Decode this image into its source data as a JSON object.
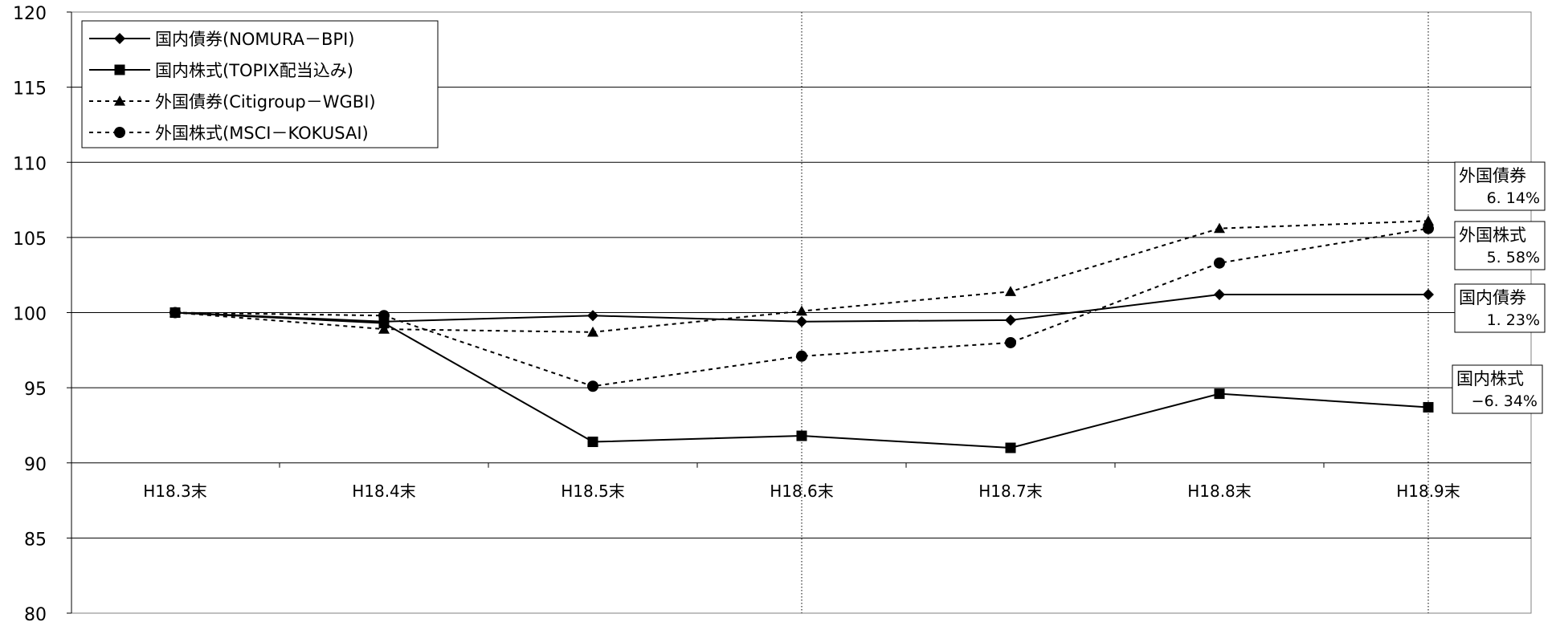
{
  "chart_data": {
    "type": "line",
    "categories": [
      "H18.3末",
      "H18.4末",
      "H18.5末",
      "H18.6末",
      "H18.7末",
      "H18.8末",
      "H18.9末"
    ],
    "ylim": [
      80,
      120
    ],
    "yticks": [
      "120",
      "115",
      "110",
      "105",
      "100",
      "95",
      "90",
      "85",
      "80"
    ],
    "grid": true,
    "legend_position": "top-left",
    "series": [
      {
        "name": "国内債券(NOMURA－BPI)",
        "marker": "diamond",
        "line_style": "solid",
        "values": [
          100,
          99.4,
          99.8,
          99.4,
          99.5,
          101.2,
          101.2
        ],
        "end_label": {
          "title": "国内債券",
          "value": "1. 23%"
        }
      },
      {
        "name": "国内株式(TOPIX配当込み)",
        "marker": "square",
        "line_style": "solid",
        "values": [
          100,
          99.3,
          91.4,
          91.8,
          91.0,
          94.6,
          93.7
        ],
        "end_label": {
          "title": "国内株式",
          "value": "−6. 34%"
        }
      },
      {
        "name": "外国債券(Citigroup－WGBI)",
        "marker": "triangle",
        "line_style": "dashed",
        "values": [
          100,
          98.9,
          98.7,
          100.1,
          101.4,
          105.6,
          106.1
        ],
        "end_label": {
          "title": "外国債券",
          "value": "6. 14%"
        }
      },
      {
        "name": "外国株式(MSCI－KOKUSAI)",
        "marker": "circle",
        "line_style": "dashed",
        "values": [
          100,
          99.8,
          95.1,
          97.1,
          98.0,
          103.3,
          105.6
        ],
        "end_label": {
          "title": "外国株式",
          "value": "5. 58%"
        }
      }
    ],
    "colors": {
      "line": "#000000",
      "grid": "#000000",
      "background": "#ffffff"
    }
  }
}
